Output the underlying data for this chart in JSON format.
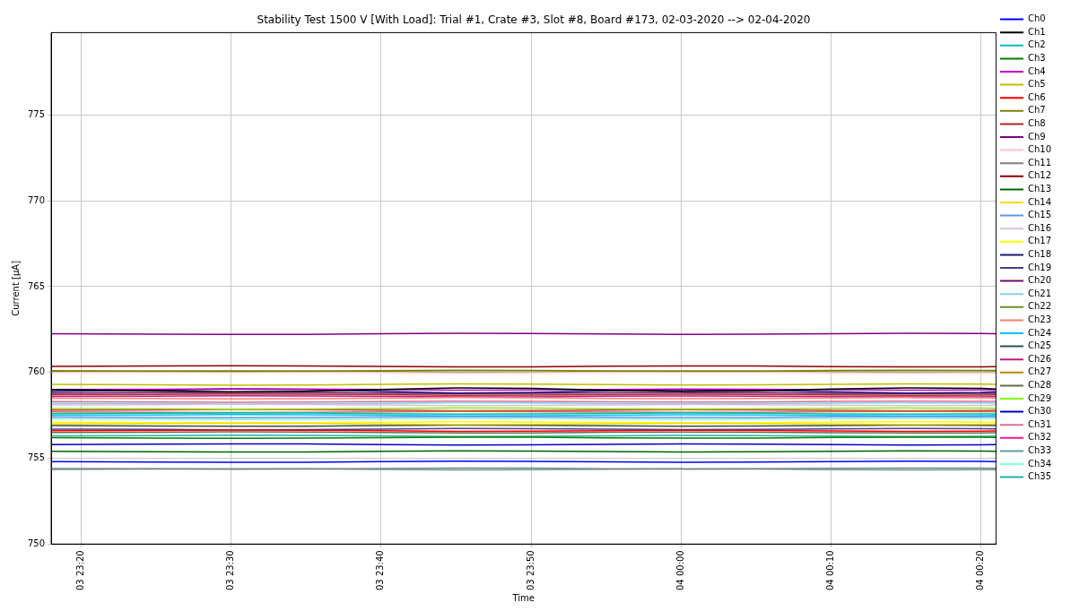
{
  "chart_data": {
    "type": "line",
    "title": "Stability Test 1500 V [With Load]: Trial #1, Crate #3, Slot #8, Board #173, 02-03-2020 --> 02-04-2020",
    "xlabel": "Time",
    "ylabel": "Current [µA]",
    "x": [
      "2020-02-03T23:18",
      "2020-02-03T23:25",
      "2020-02-03T23:30",
      "2020-02-03T23:35",
      "2020-02-03T23:40",
      "2020-02-03T23:45",
      "2020-02-03T23:50",
      "2020-02-03T23:55",
      "2020-02-04T00:00",
      "2020-02-04T00:05",
      "2020-02-04T00:10",
      "2020-02-04T00:15",
      "2020-02-04T00:20",
      "2020-02-04T00:21"
    ],
    "xlim": [
      "2020-02-03T23:18",
      "2020-02-04T00:21"
    ],
    "xticks": [
      {
        "value": "2020-02-03T23:20",
        "label": "03 23:20"
      },
      {
        "value": "2020-02-03T23:30",
        "label": "03 23:30"
      },
      {
        "value": "2020-02-03T23:40",
        "label": "03 23:40"
      },
      {
        "value": "2020-02-03T23:50",
        "label": "03 23:50"
      },
      {
        "value": "2020-02-04T00:00",
        "label": "04 00:00"
      },
      {
        "value": "2020-02-04T00:10",
        "label": "04 00:10"
      },
      {
        "value": "2020-02-04T00:20",
        "label": "04 00:20"
      }
    ],
    "ylim": [
      750,
      779.8
    ],
    "yticks": [
      750,
      755,
      760,
      765,
      770,
      775
    ],
    "grid": true,
    "legend": "top right",
    "marker": "none",
    "line_style": "solid",
    "series": [
      {
        "name": "Ch0",
        "color": "#0000ff",
        "values": [
          754.8,
          754.78,
          754.76,
          754.77,
          754.8,
          754.83,
          754.82,
          754.79,
          754.77,
          754.78,
          754.81,
          754.83,
          754.82,
          754.81
        ]
      },
      {
        "name": "Ch1",
        "color": "#000000",
        "values": [
          759.0,
          758.93,
          758.87,
          758.9,
          759.0,
          759.1,
          759.07,
          758.97,
          758.9,
          758.93,
          759.03,
          759.1,
          759.07,
          759.03
        ]
      },
      {
        "name": "Ch2",
        "color": "#00bfbf",
        "values": [
          757.6,
          757.62,
          757.64,
          757.63,
          757.6,
          757.57,
          757.58,
          757.61,
          757.63,
          757.62,
          757.59,
          757.57,
          757.58,
          757.59
        ]
      },
      {
        "name": "Ch3",
        "color": "#008000",
        "values": [
          756.2,
          756.18,
          756.16,
          756.17,
          756.2,
          756.23,
          756.22,
          756.19,
          756.17,
          756.18,
          756.21,
          756.23,
          756.22,
          756.21
        ]
      },
      {
        "name": "Ch4",
        "color": "#bf00bf",
        "values": [
          759.0,
          759.02,
          759.04,
          759.03,
          759.0,
          758.97,
          758.98,
          759.01,
          759.03,
          759.02,
          758.99,
          758.97,
          758.98,
          758.99
        ]
      },
      {
        "name": "Ch5",
        "color": "#bfbf00",
        "values": [
          759.3,
          759.28,
          759.26,
          759.27,
          759.3,
          759.33,
          759.32,
          759.29,
          759.27,
          759.28,
          759.31,
          759.33,
          759.32,
          759.31
        ]
      },
      {
        "name": "Ch6",
        "color": "#ff0000",
        "values": [
          756.6,
          756.62,
          756.64,
          756.63,
          756.6,
          756.57,
          756.58,
          756.61,
          756.63,
          756.62,
          756.59,
          756.57,
          756.58,
          756.59
        ]
      },
      {
        "name": "Ch7",
        "color": "#808000",
        "values": [
          760.1,
          760.08,
          760.06,
          760.07,
          760.1,
          760.13,
          760.12,
          760.09,
          760.07,
          760.08,
          760.11,
          760.13,
          760.12,
          760.11
        ]
      },
      {
        "name": "Ch8",
        "color": "#a52a2a",
        "values": [
          758.7,
          758.72,
          758.74,
          758.73,
          758.7,
          758.67,
          758.68,
          758.71,
          758.73,
          758.72,
          758.69,
          758.67,
          758.68,
          758.69
        ]
      },
      {
        "name": "Ch9",
        "color": "#800080",
        "values": [
          762.25,
          762.23,
          762.21,
          762.22,
          762.25,
          762.28,
          762.27,
          762.24,
          762.22,
          762.23,
          762.26,
          762.28,
          762.27,
          762.26
        ]
      },
      {
        "name": "Ch10",
        "color": "#ffc0cb",
        "values": [
          760.0,
          760.02,
          760.04,
          760.03,
          760.0,
          759.97,
          759.98,
          760.01,
          760.03,
          760.02,
          759.99,
          759.97,
          759.98,
          759.99
        ]
      },
      {
        "name": "Ch11",
        "color": "#808080",
        "values": [
          754.4,
          754.38,
          754.36,
          754.37,
          754.4,
          754.43,
          754.42,
          754.39,
          754.37,
          754.38,
          754.41,
          754.43,
          754.42,
          754.41
        ]
      },
      {
        "name": "Ch12",
        "color": "#8b0000",
        "values": [
          760.35,
          760.37,
          760.39,
          760.38,
          760.35,
          760.32,
          760.33,
          760.36,
          760.38,
          760.37,
          760.34,
          760.32,
          760.33,
          760.34
        ]
      },
      {
        "name": "Ch13",
        "color": "#006400",
        "values": [
          755.4,
          755.38,
          755.36,
          755.37,
          755.4,
          755.43,
          755.42,
          755.39,
          755.37,
          755.38,
          755.41,
          755.43,
          755.42,
          755.41
        ]
      },
      {
        "name": "Ch14",
        "color": "#ffd700",
        "values": [
          757.0,
          757.02,
          757.04,
          757.03,
          757.0,
          756.97,
          756.98,
          757.01,
          757.03,
          757.02,
          756.99,
          756.97,
          756.98,
          756.99
        ]
      },
      {
        "name": "Ch15",
        "color": "#6495ed",
        "values": [
          757.4,
          757.38,
          757.36,
          757.37,
          757.4,
          757.43,
          757.42,
          757.39,
          757.37,
          757.38,
          757.41,
          757.43,
          757.42,
          757.41
        ]
      },
      {
        "name": "Ch16",
        "color": "#d8bfd8",
        "values": [
          758.1,
          758.12,
          758.14,
          758.13,
          758.1,
          758.07,
          758.08,
          758.11,
          758.13,
          758.12,
          758.09,
          758.07,
          758.08,
          758.09
        ]
      },
      {
        "name": "Ch17",
        "color": "#ffff00",
        "values": [
          757.1,
          757.08,
          757.06,
          757.07,
          757.1,
          757.13,
          757.12,
          757.09,
          757.07,
          757.08,
          757.11,
          757.13,
          757.12,
          757.11
        ]
      },
      {
        "name": "Ch18",
        "color": "#191970",
        "values": [
          758.9,
          758.97,
          759.03,
          759.0,
          758.9,
          758.8,
          758.83,
          758.93,
          759.0,
          758.97,
          758.87,
          758.8,
          758.83,
          758.87
        ]
      },
      {
        "name": "Ch19",
        "color": "#483d8b",
        "values": [
          756.7,
          756.68,
          756.66,
          756.67,
          756.7,
          756.73,
          756.72,
          756.69,
          756.67,
          756.68,
          756.71,
          756.73,
          756.72,
          756.71
        ]
      },
      {
        "name": "Ch20",
        "color": "#6a0d6a",
        "values": [
          758.8,
          758.82,
          758.84,
          758.83,
          758.8,
          758.77,
          758.78,
          758.81,
          758.83,
          758.82,
          758.79,
          758.77,
          758.78,
          758.79
        ]
      },
      {
        "name": "Ch21",
        "color": "#87ceeb",
        "values": [
          758.2,
          758.18,
          758.16,
          758.17,
          758.2,
          758.23,
          758.22,
          758.19,
          758.17,
          758.18,
          758.21,
          758.23,
          758.22,
          758.21
        ]
      },
      {
        "name": "Ch22",
        "color": "#6b8e23",
        "values": [
          760.05,
          760.07,
          760.09,
          760.08,
          760.05,
          760.02,
          760.03,
          760.06,
          760.08,
          760.07,
          760.04,
          760.02,
          760.03,
          760.04
        ]
      },
      {
        "name": "Ch23",
        "color": "#fa8072",
        "values": [
          758.5,
          758.48,
          758.46,
          758.47,
          758.5,
          758.53,
          758.52,
          758.49,
          758.47,
          758.48,
          758.51,
          758.53,
          758.52,
          758.51
        ]
      },
      {
        "name": "Ch24",
        "color": "#00bfff",
        "values": [
          757.5,
          757.52,
          757.54,
          757.53,
          757.5,
          757.47,
          757.48,
          757.51,
          757.53,
          757.52,
          757.49,
          757.47,
          757.48,
          757.49
        ]
      },
      {
        "name": "Ch25",
        "color": "#2f4f4f",
        "values": [
          756.9,
          756.88,
          756.86,
          756.87,
          756.9,
          756.93,
          756.92,
          756.89,
          756.87,
          756.88,
          756.91,
          756.93,
          756.92,
          756.91
        ]
      },
      {
        "name": "Ch26",
        "color": "#c71585",
        "values": [
          758.6,
          758.62,
          758.64,
          758.63,
          758.6,
          758.57,
          758.58,
          758.61,
          758.63,
          758.62,
          758.59,
          758.57,
          758.58,
          758.59
        ]
      },
      {
        "name": "Ch27",
        "color": "#b8860b",
        "values": [
          757.7,
          757.68,
          757.66,
          757.67,
          757.7,
          757.73,
          757.72,
          757.69,
          757.67,
          757.68,
          757.71,
          757.73,
          757.72,
          757.71
        ]
      },
      {
        "name": "Ch28",
        "color": "#6b6b4f",
        "values": [
          756.5,
          756.52,
          756.54,
          756.53,
          756.5,
          756.47,
          756.48,
          756.51,
          756.53,
          756.52,
          756.49,
          756.47,
          756.48,
          756.49
        ]
      },
      {
        "name": "Ch29",
        "color": "#7cfc00",
        "values": [
          757.9,
          757.88,
          757.86,
          757.87,
          757.9,
          757.93,
          757.92,
          757.89,
          757.87,
          757.88,
          757.91,
          757.93,
          757.92,
          757.91
        ]
      },
      {
        "name": "Ch30",
        "color": "#0000cd",
        "values": [
          755.8,
          755.82,
          755.84,
          755.83,
          755.8,
          755.77,
          755.78,
          755.81,
          755.83,
          755.82,
          755.79,
          755.77,
          755.78,
          755.79
        ]
      },
      {
        "name": "Ch31",
        "color": "#db7093",
        "values": [
          758.3,
          758.28,
          758.26,
          758.27,
          758.3,
          758.33,
          758.32,
          758.29,
          758.27,
          758.28,
          758.31,
          758.33,
          758.32,
          758.31
        ]
      },
      {
        "name": "Ch32",
        "color": "#ff1493",
        "values": [
          757.8,
          757.82,
          757.84,
          757.83,
          757.8,
          757.77,
          757.78,
          757.81,
          757.83,
          757.82,
          757.79,
          757.77,
          757.78,
          757.79
        ]
      },
      {
        "name": "Ch33",
        "color": "#5f9ea0",
        "values": [
          754.35,
          754.37,
          754.39,
          754.38,
          754.35,
          754.32,
          754.33,
          754.36,
          754.38,
          754.37,
          754.34,
          754.32,
          754.33,
          754.34
        ]
      },
      {
        "name": "Ch34",
        "color": "#7fffd4",
        "values": [
          757.3,
          757.28,
          757.26,
          757.27,
          757.3,
          757.33,
          757.32,
          757.29,
          757.27,
          757.28,
          757.31,
          757.33,
          757.32,
          757.31
        ]
      },
      {
        "name": "Ch35",
        "color": "#20b2aa",
        "values": [
          756.3,
          756.32,
          756.34,
          756.33,
          756.3,
          756.27,
          756.28,
          756.31,
          756.33,
          756.32,
          756.29,
          756.27,
          756.28,
          756.29
        ]
      }
    ]
  }
}
